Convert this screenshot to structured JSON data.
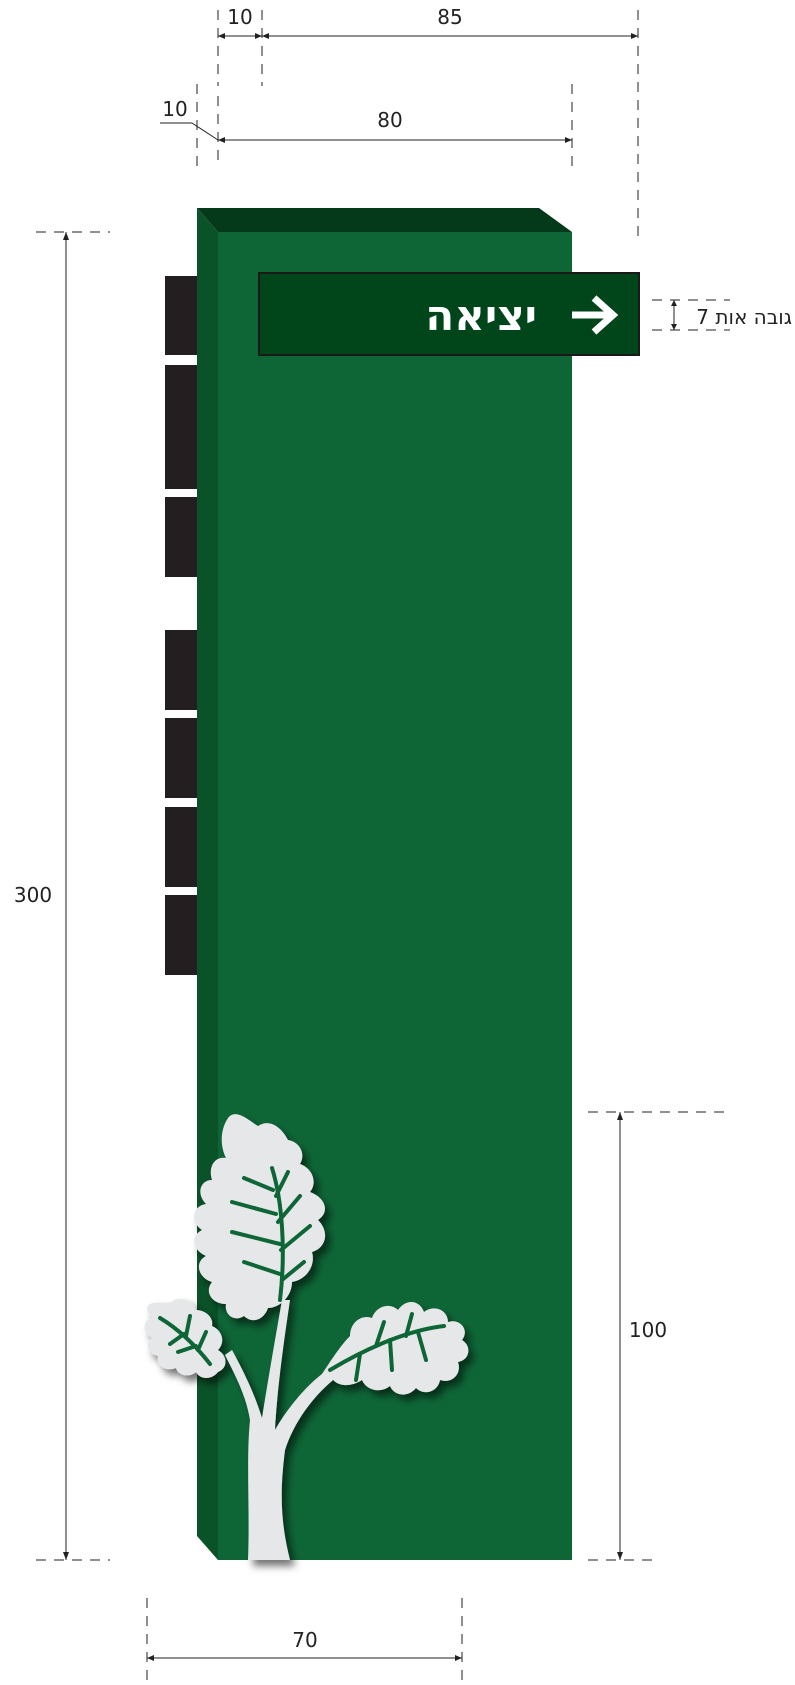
{
  "sign": {
    "label": "יציאה",
    "letter_height_label": "גובה אות 7",
    "colors": {
      "pillar_front": "#0e6637",
      "pillar_side": "#0a5228",
      "pillar_top": "#043a1a",
      "panel": "#00461a",
      "blocks": "#231f20",
      "tree": "#e6e7e8"
    }
  },
  "dimensions": {
    "top_offset": "10",
    "top_width": "85",
    "inner_offset": "10",
    "inner_width": "80",
    "total_height": "300",
    "base_height": "100",
    "base_width": "70"
  },
  "icons": {
    "arrow": "arrow-right-icon",
    "tree": "oak-tree-icon"
  }
}
